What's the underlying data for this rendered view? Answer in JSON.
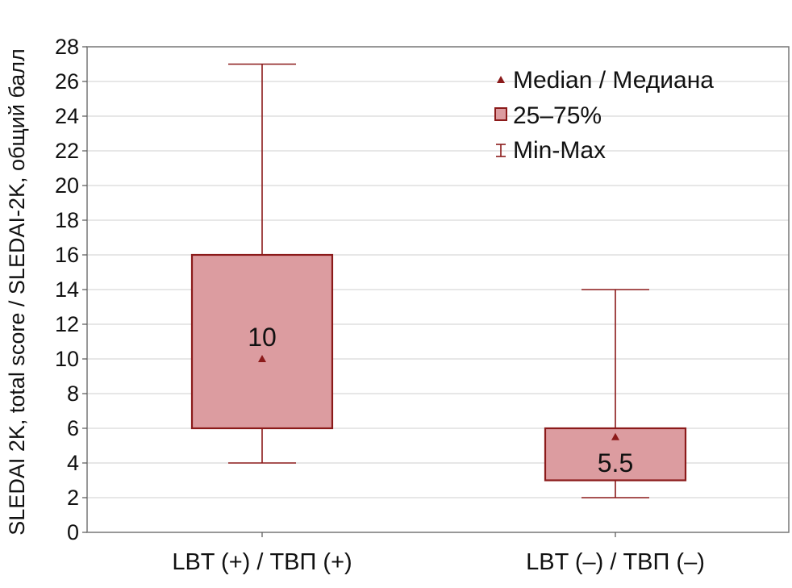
{
  "chart_data": {
    "type": "boxplot",
    "ylabel": "SLEDAI 2K, total score / SLEDAI-2K, общий балл",
    "xlabel": "",
    "ylim": [
      0,
      28
    ],
    "yticks": [
      0,
      2,
      4,
      6,
      8,
      10,
      12,
      14,
      16,
      18,
      20,
      22,
      24,
      26,
      28
    ],
    "grid": true,
    "legend_position": "top-right",
    "legend": [
      {
        "key": "median",
        "label": "Median / Медиана"
      },
      {
        "key": "box",
        "label": "25–75%"
      },
      {
        "key": "whisker",
        "label": "Min-Max"
      }
    ],
    "categories": [
      "LBT (+) / ТВП (+)",
      "LBT (–) / ТВП (–)"
    ],
    "boxes": [
      {
        "category": "LBT (+) / ТВП (+)",
        "min": 4,
        "q1": 6,
        "median": 10,
        "q3": 16,
        "max": 27,
        "label": "10"
      },
      {
        "category": "LBT (–) / ТВП (–)",
        "min": 2,
        "q1": 3,
        "median": 5.5,
        "q3": 6,
        "max": 14,
        "label": "5.5"
      }
    ],
    "colors": {
      "box_fill": "#dc9ca0",
      "box_stroke": "#8b1a1a",
      "median": "#8b1a1a",
      "grid": "#cfcfcf"
    }
  }
}
